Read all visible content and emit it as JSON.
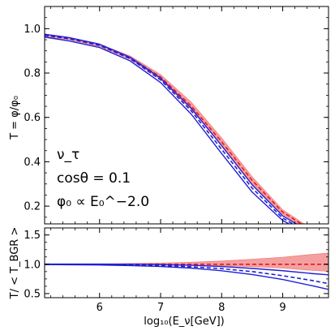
{
  "chart_data": {
    "type": "line",
    "xlabel": "log₁₀(E_ν[GeV])",
    "x_ticks": [
      6,
      7,
      8,
      9
    ],
    "xlim": [
      5.1,
      9.75
    ],
    "annotations": [
      {
        "text": "ν_τ"
      },
      {
        "text": "cosθ = 0.1"
      },
      {
        "text": "φ₀ ∝ E₀^−2.0"
      }
    ],
    "panels": [
      {
        "name": "top",
        "ylabel": "T = φ/φ₀",
        "ylim": [
          0.12,
          1.1
        ],
        "y_ticks": [
          0.2,
          0.4,
          0.6,
          0.8,
          1.0
        ],
        "y_tick_labels": [
          "0.2",
          "0.4",
          "0.6",
          "0.8",
          "1.0"
        ],
        "series": [
          {
            "style": "red-band",
            "color": "#f08080",
            "x": [
              5.1,
              5.5,
              6.0,
              6.5,
              7.0,
              7.5,
              8.0,
              8.5,
              9.0,
              9.5,
              9.75
            ],
            "lower": [
              0.965,
              0.95,
              0.92,
              0.862,
              0.771,
              0.637,
              0.474,
              0.302,
              0.163,
              0.079,
              0.058
            ],
            "upper": [
              0.975,
              0.96,
              0.93,
              0.877,
              0.793,
              0.669,
              0.507,
              0.332,
              0.183,
              0.093,
              0.07
            ]
          },
          {
            "style": "red-dashed",
            "color": "#e41a1c",
            "x": [
              5.1,
              5.5,
              6.0,
              6.5,
              7.0,
              7.5,
              8.0,
              8.5,
              9.0,
              9.5,
              9.75
            ],
            "y": [
              0.97,
              0.955,
              0.925,
              0.87,
              0.782,
              0.652,
              0.49,
              0.316,
              0.173,
              0.086,
              0.064
            ]
          },
          {
            "style": "blue-solid",
            "color": "#1f1fd6",
            "x": [
              5.1,
              5.5,
              6.0,
              6.5,
              7.0,
              7.5,
              8.0,
              8.5,
              9.0,
              9.5,
              9.75
            ],
            "y": [
              0.975,
              0.96,
              0.93,
              0.871,
              0.777,
              0.642,
              0.472,
              0.296,
              0.156,
              0.075,
              0.057
            ]
          },
          {
            "style": "blue-dashed",
            "color": "#1f1fd6",
            "x": [
              5.1,
              5.5,
              6.0,
              6.5,
              7.0,
              7.5,
              8.0,
              8.5,
              9.0,
              9.5,
              9.75
            ],
            "y": [
              0.97,
              0.955,
              0.925,
              0.865,
              0.769,
              0.63,
              0.456,
              0.281,
              0.146,
              0.068,
              0.051
            ]
          },
          {
            "style": "blue-solid",
            "color": "#1f1fd6",
            "x": [
              5.1,
              5.5,
              6.0,
              6.5,
              7.0,
              7.5,
              8.0,
              8.5,
              9.0,
              9.5,
              9.75
            ],
            "y": [
              0.962,
              0.945,
              0.915,
              0.855,
              0.757,
              0.615,
              0.437,
              0.263,
              0.135,
              0.062,
              0.047
            ]
          }
        ]
      },
      {
        "name": "bottom",
        "ylabel": "T/ < T_BGR >",
        "ylim": [
          0.43,
          1.62
        ],
        "y_ticks": [
          0.5,
          1.0,
          1.5
        ],
        "y_tick_labels": [
          "0.5",
          "1.0",
          "1.5"
        ],
        "series": [
          {
            "style": "red-band",
            "color": "#f08080",
            "x": [
              5.1,
              6.0,
              6.5,
              7.0,
              7.5,
              8.0,
              8.5,
              9.0,
              9.5,
              9.75
            ],
            "lower": [
              1.0,
              0.996,
              0.994,
              0.99,
              0.985,
              0.975,
              0.96,
              0.935,
              0.895,
              0.88
            ],
            "upper": [
              1.0,
              1.005,
              1.012,
              1.02,
              1.035,
              1.055,
              1.085,
              1.12,
              1.17,
              1.19
            ]
          },
          {
            "style": "red-dashed",
            "color": "#e41a1c",
            "x": [
              5.1,
              6.0,
              7.0,
              8.0,
              9.0,
              9.75
            ],
            "y": [
              1.0,
              1.0,
              1.0,
              1.0,
              1.0,
              1.0
            ]
          },
          {
            "style": "blue-solid",
            "color": "#1f1fd6",
            "x": [
              5.1,
              6.0,
              6.5,
              7.0,
              7.5,
              8.0,
              8.5,
              9.0,
              9.5,
              9.75
            ],
            "y": [
              1.003,
              1.003,
              1.0,
              0.993,
              0.982,
              0.962,
              0.93,
              0.89,
              0.84,
              0.82
            ]
          },
          {
            "style": "blue-dashed",
            "color": "#1f1fd6",
            "x": [
              5.1,
              6.0,
              6.5,
              7.0,
              7.5,
              8.0,
              8.5,
              9.0,
              9.5,
              9.75
            ],
            "y": [
              0.998,
              0.995,
              0.99,
              0.978,
              0.958,
              0.925,
              0.875,
              0.805,
              0.72,
              0.67
            ]
          },
          {
            "style": "blue-solid",
            "color": "#1f1fd6",
            "x": [
              5.1,
              6.0,
              6.5,
              7.0,
              7.5,
              8.0,
              8.5,
              9.0,
              9.5,
              9.75
            ],
            "y": [
              0.995,
              0.988,
              0.978,
              0.962,
              0.935,
              0.89,
              0.825,
              0.74,
              0.63,
              0.57
            ]
          }
        ]
      }
    ]
  }
}
